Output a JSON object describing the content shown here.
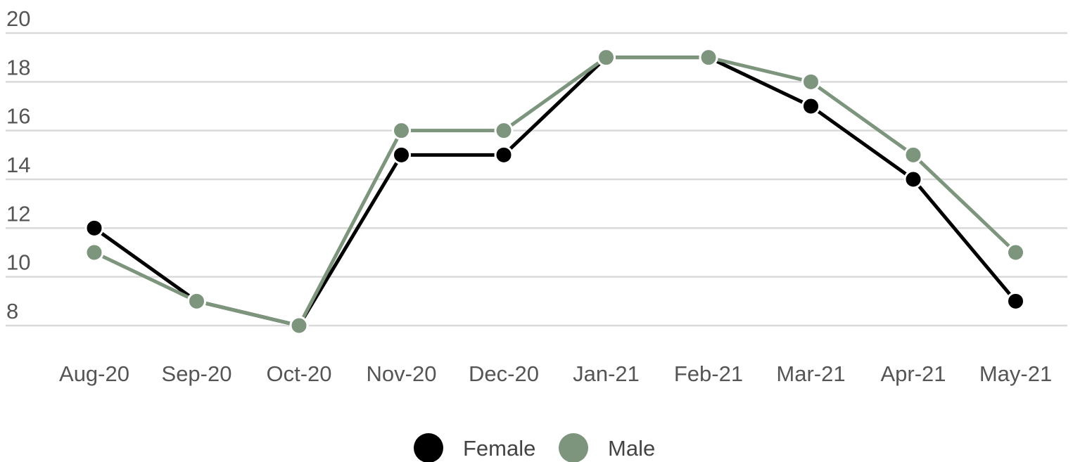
{
  "chart_data": {
    "type": "line",
    "categories": [
      "Aug-20",
      "Sep-20",
      "Oct-20",
      "Nov-20",
      "Dec-20",
      "Jan-21",
      "Feb-21",
      "Mar-21",
      "Apr-21",
      "May-21"
    ],
    "series": [
      {
        "name": "Female",
        "color": "#000000",
        "values": [
          12,
          9,
          8,
          15,
          15,
          19,
          19,
          17,
          14,
          9
        ]
      },
      {
        "name": "Male",
        "color": "#7d957d",
        "values": [
          11,
          9,
          8,
          16,
          16,
          19,
          19,
          18,
          15,
          11
        ]
      }
    ],
    "y_ticks": [
      "8",
      "10",
      "12",
      "14",
      "16",
      "18",
      "20"
    ],
    "ylim": [
      8,
      20
    ],
    "grid": true,
    "legend_position": "bottom-center"
  }
}
